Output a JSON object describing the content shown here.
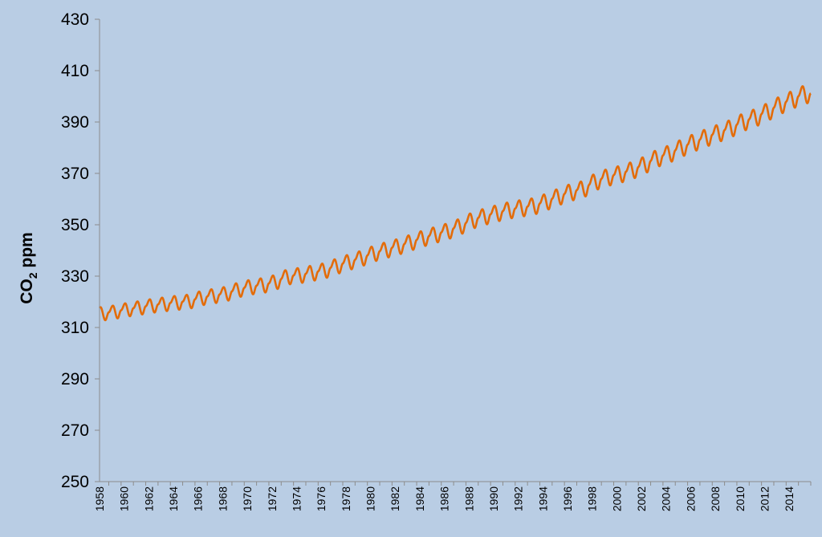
{
  "chart_data": {
    "type": "line",
    "title": "",
    "xlabel": "",
    "ylabel": "CO",
    "ylabel_subscript": "2",
    "ylabel_suffix": " ppm",
    "ylim": [
      250,
      430
    ],
    "xlim": [
      1958.25,
      2016.0
    ],
    "grid": false,
    "legend": "none",
    "y_ticks": [
      "250",
      "270",
      "290",
      "310",
      "330",
      "350",
      "370",
      "390",
      "410",
      "430"
    ],
    "x_ticks": [
      "1958",
      "1960",
      "1962",
      "1964",
      "1966",
      "1968",
      "1970",
      "1972",
      "1974",
      "1976",
      "1978",
      "1980",
      "1982",
      "1984",
      "1986",
      "1988",
      "1990",
      "1992",
      "1994",
      "1996",
      "1998",
      "2000",
      "2002",
      "2004",
      "2006",
      "2008",
      "2010",
      "2012",
      "2014"
    ],
    "series": [
      {
        "color": "#e36c0a",
        "annual_mean": [
          [
            1958,
            315.3
          ],
          [
            1959,
            316.0
          ],
          [
            1960,
            316.9
          ],
          [
            1961,
            317.6
          ],
          [
            1962,
            318.4
          ],
          [
            1963,
            319.0
          ],
          [
            1964,
            319.6
          ],
          [
            1965,
            320.0
          ],
          [
            1966,
            321.4
          ],
          [
            1967,
            322.2
          ],
          [
            1968,
            323.0
          ],
          [
            1969,
            324.6
          ],
          [
            1970,
            325.7
          ],
          [
            1971,
            326.3
          ],
          [
            1972,
            327.5
          ],
          [
            1973,
            329.7
          ],
          [
            1974,
            330.2
          ],
          [
            1975,
            331.1
          ],
          [
            1976,
            332.0
          ],
          [
            1977,
            333.8
          ],
          [
            1978,
            335.4
          ],
          [
            1979,
            336.8
          ],
          [
            1980,
            338.7
          ],
          [
            1981,
            340.1
          ],
          [
            1982,
            341.4
          ],
          [
            1983,
            343.0
          ],
          [
            1984,
            344.6
          ],
          [
            1985,
            346.0
          ],
          [
            1986,
            347.4
          ],
          [
            1987,
            349.2
          ],
          [
            1988,
            351.6
          ],
          [
            1989,
            353.1
          ],
          [
            1990,
            354.4
          ],
          [
            1991,
            355.6
          ],
          [
            1992,
            356.4
          ],
          [
            1993,
            357.1
          ],
          [
            1994,
            358.8
          ],
          [
            1995,
            360.8
          ],
          [
            1996,
            362.6
          ],
          [
            1997,
            363.7
          ],
          [
            1998,
            366.7
          ],
          [
            1999,
            368.4
          ],
          [
            2000,
            369.6
          ],
          [
            2001,
            371.1
          ],
          [
            2002,
            373.2
          ],
          [
            2003,
            375.8
          ],
          [
            2004,
            377.5
          ],
          [
            2005,
            379.8
          ],
          [
            2006,
            381.9
          ],
          [
            2007,
            383.8
          ],
          [
            2008,
            385.6
          ],
          [
            2009,
            387.4
          ],
          [
            2010,
            389.9
          ],
          [
            2011,
            391.6
          ],
          [
            2012,
            393.9
          ],
          [
            2013,
            396.5
          ],
          [
            2014,
            398.6
          ],
          [
            2015,
            400.8
          ]
        ],
        "seasonal_amplitude": [
          [
            1958,
            2.6
          ],
          [
            1975,
            3.0
          ],
          [
            1990,
            3.2
          ],
          [
            2005,
            3.4
          ],
          [
            2015,
            3.5
          ]
        ]
      }
    ]
  }
}
